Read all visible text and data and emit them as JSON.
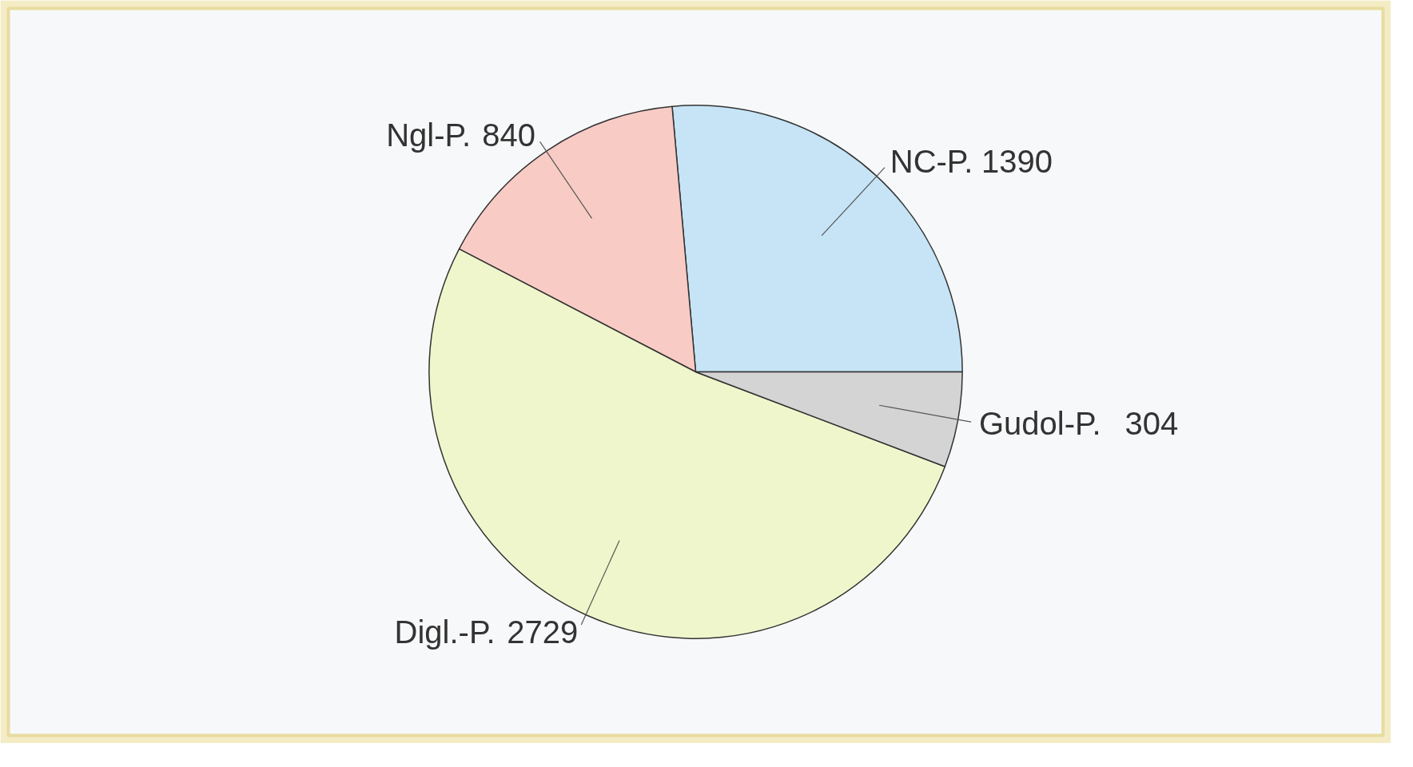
{
  "chart_data": {
    "type": "pie",
    "categories": [
      "NC-P.",
      "Ngl-P.",
      "Digl.-P.",
      "Gudol-P."
    ],
    "values": [
      1390,
      840,
      2729,
      304
    ],
    "colors": [
      "#c6e4f6",
      "#f9cbc5",
      "#eff6cb",
      "#d4d4d4"
    ],
    "data_labels": true
  }
}
